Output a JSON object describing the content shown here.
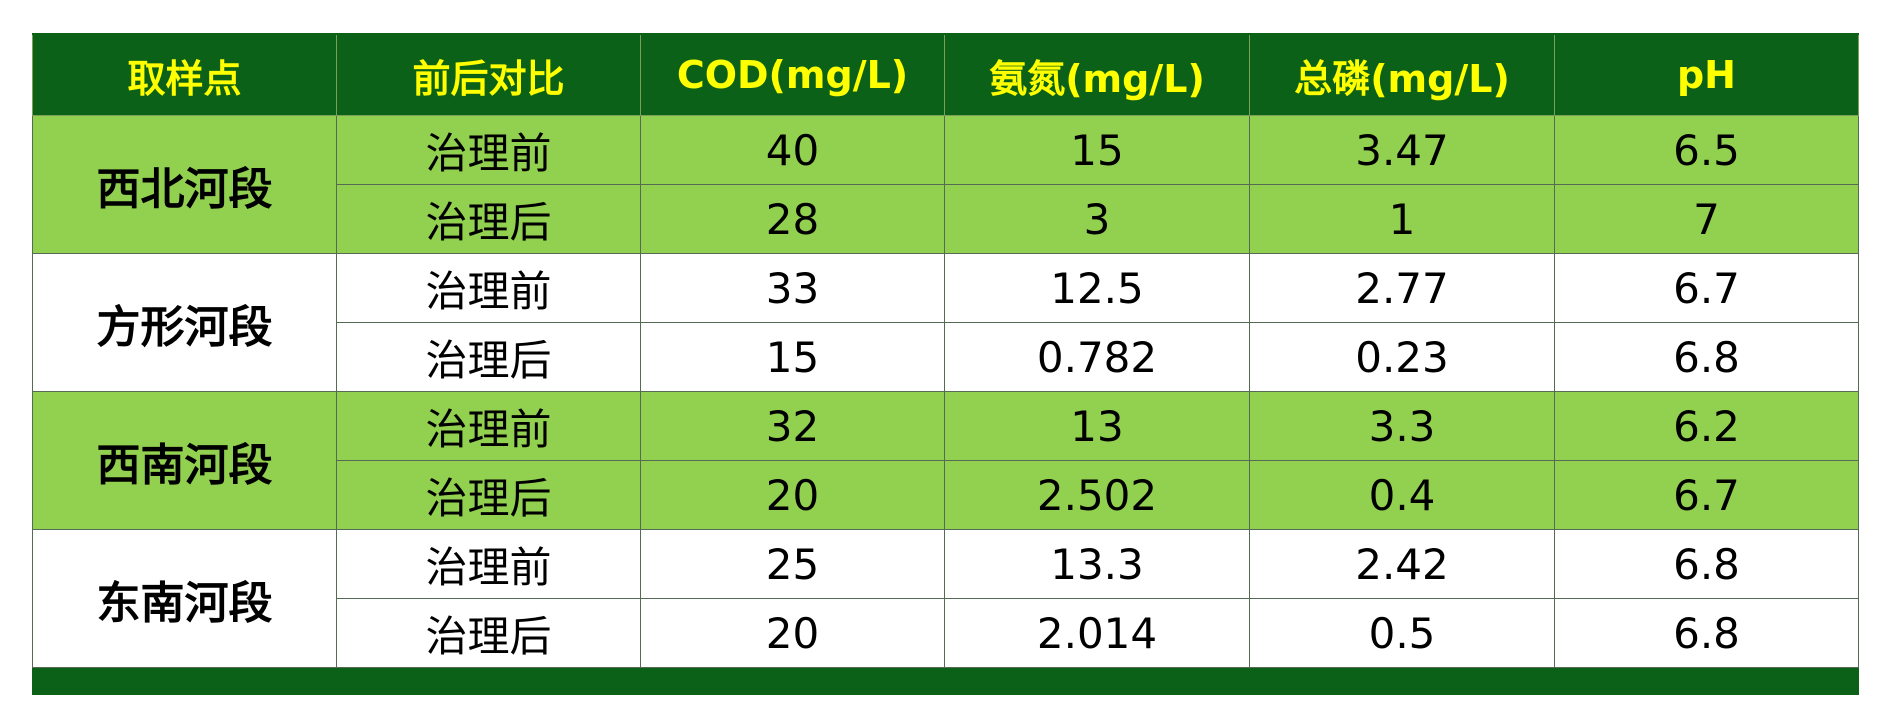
{
  "chart_data": {
    "type": "table",
    "colors": {
      "header_bg": "#0b6118",
      "header_text": "#ffff00",
      "band_green": "#92d050",
      "band_white": "#ffffff"
    },
    "columns": [
      "取样点",
      "前后对比",
      "COD(mg/L)",
      "氨氮(mg/L)",
      "总磷(mg/L)",
      "pH"
    ],
    "groups": [
      {
        "site": "西北河段",
        "band": "green",
        "rows": [
          {
            "stage": "治理前",
            "cod": "40",
            "nh3n": "15",
            "tp": "3.47",
            "ph": "6.5"
          },
          {
            "stage": "治理后",
            "cod": "28",
            "nh3n": "3",
            "tp": "1",
            "ph": "7"
          }
        ]
      },
      {
        "site": "方形河段",
        "band": "white",
        "rows": [
          {
            "stage": "治理前",
            "cod": "33",
            "nh3n": "12.5",
            "tp": "2.77",
            "ph": "6.7"
          },
          {
            "stage": "治理后",
            "cod": "15",
            "nh3n": "0.782",
            "tp": "0.23",
            "ph": "6.8"
          }
        ]
      },
      {
        "site": "西南河段",
        "band": "green",
        "rows": [
          {
            "stage": "治理前",
            "cod": "32",
            "nh3n": "13",
            "tp": "3.3",
            "ph": "6.2"
          },
          {
            "stage": "治理后",
            "cod": "20",
            "nh3n": "2.502",
            "tp": "0.4",
            "ph": "6.7"
          }
        ]
      },
      {
        "site": "东南河段",
        "band": "white",
        "rows": [
          {
            "stage": "治理前",
            "cod": "25",
            "nh3n": "13.3",
            "tp": "2.42",
            "ph": "6.8"
          },
          {
            "stage": "治理后",
            "cod": "20",
            "nh3n": "2.014",
            "tp": "0.5",
            "ph": "6.8"
          }
        ]
      }
    ]
  }
}
